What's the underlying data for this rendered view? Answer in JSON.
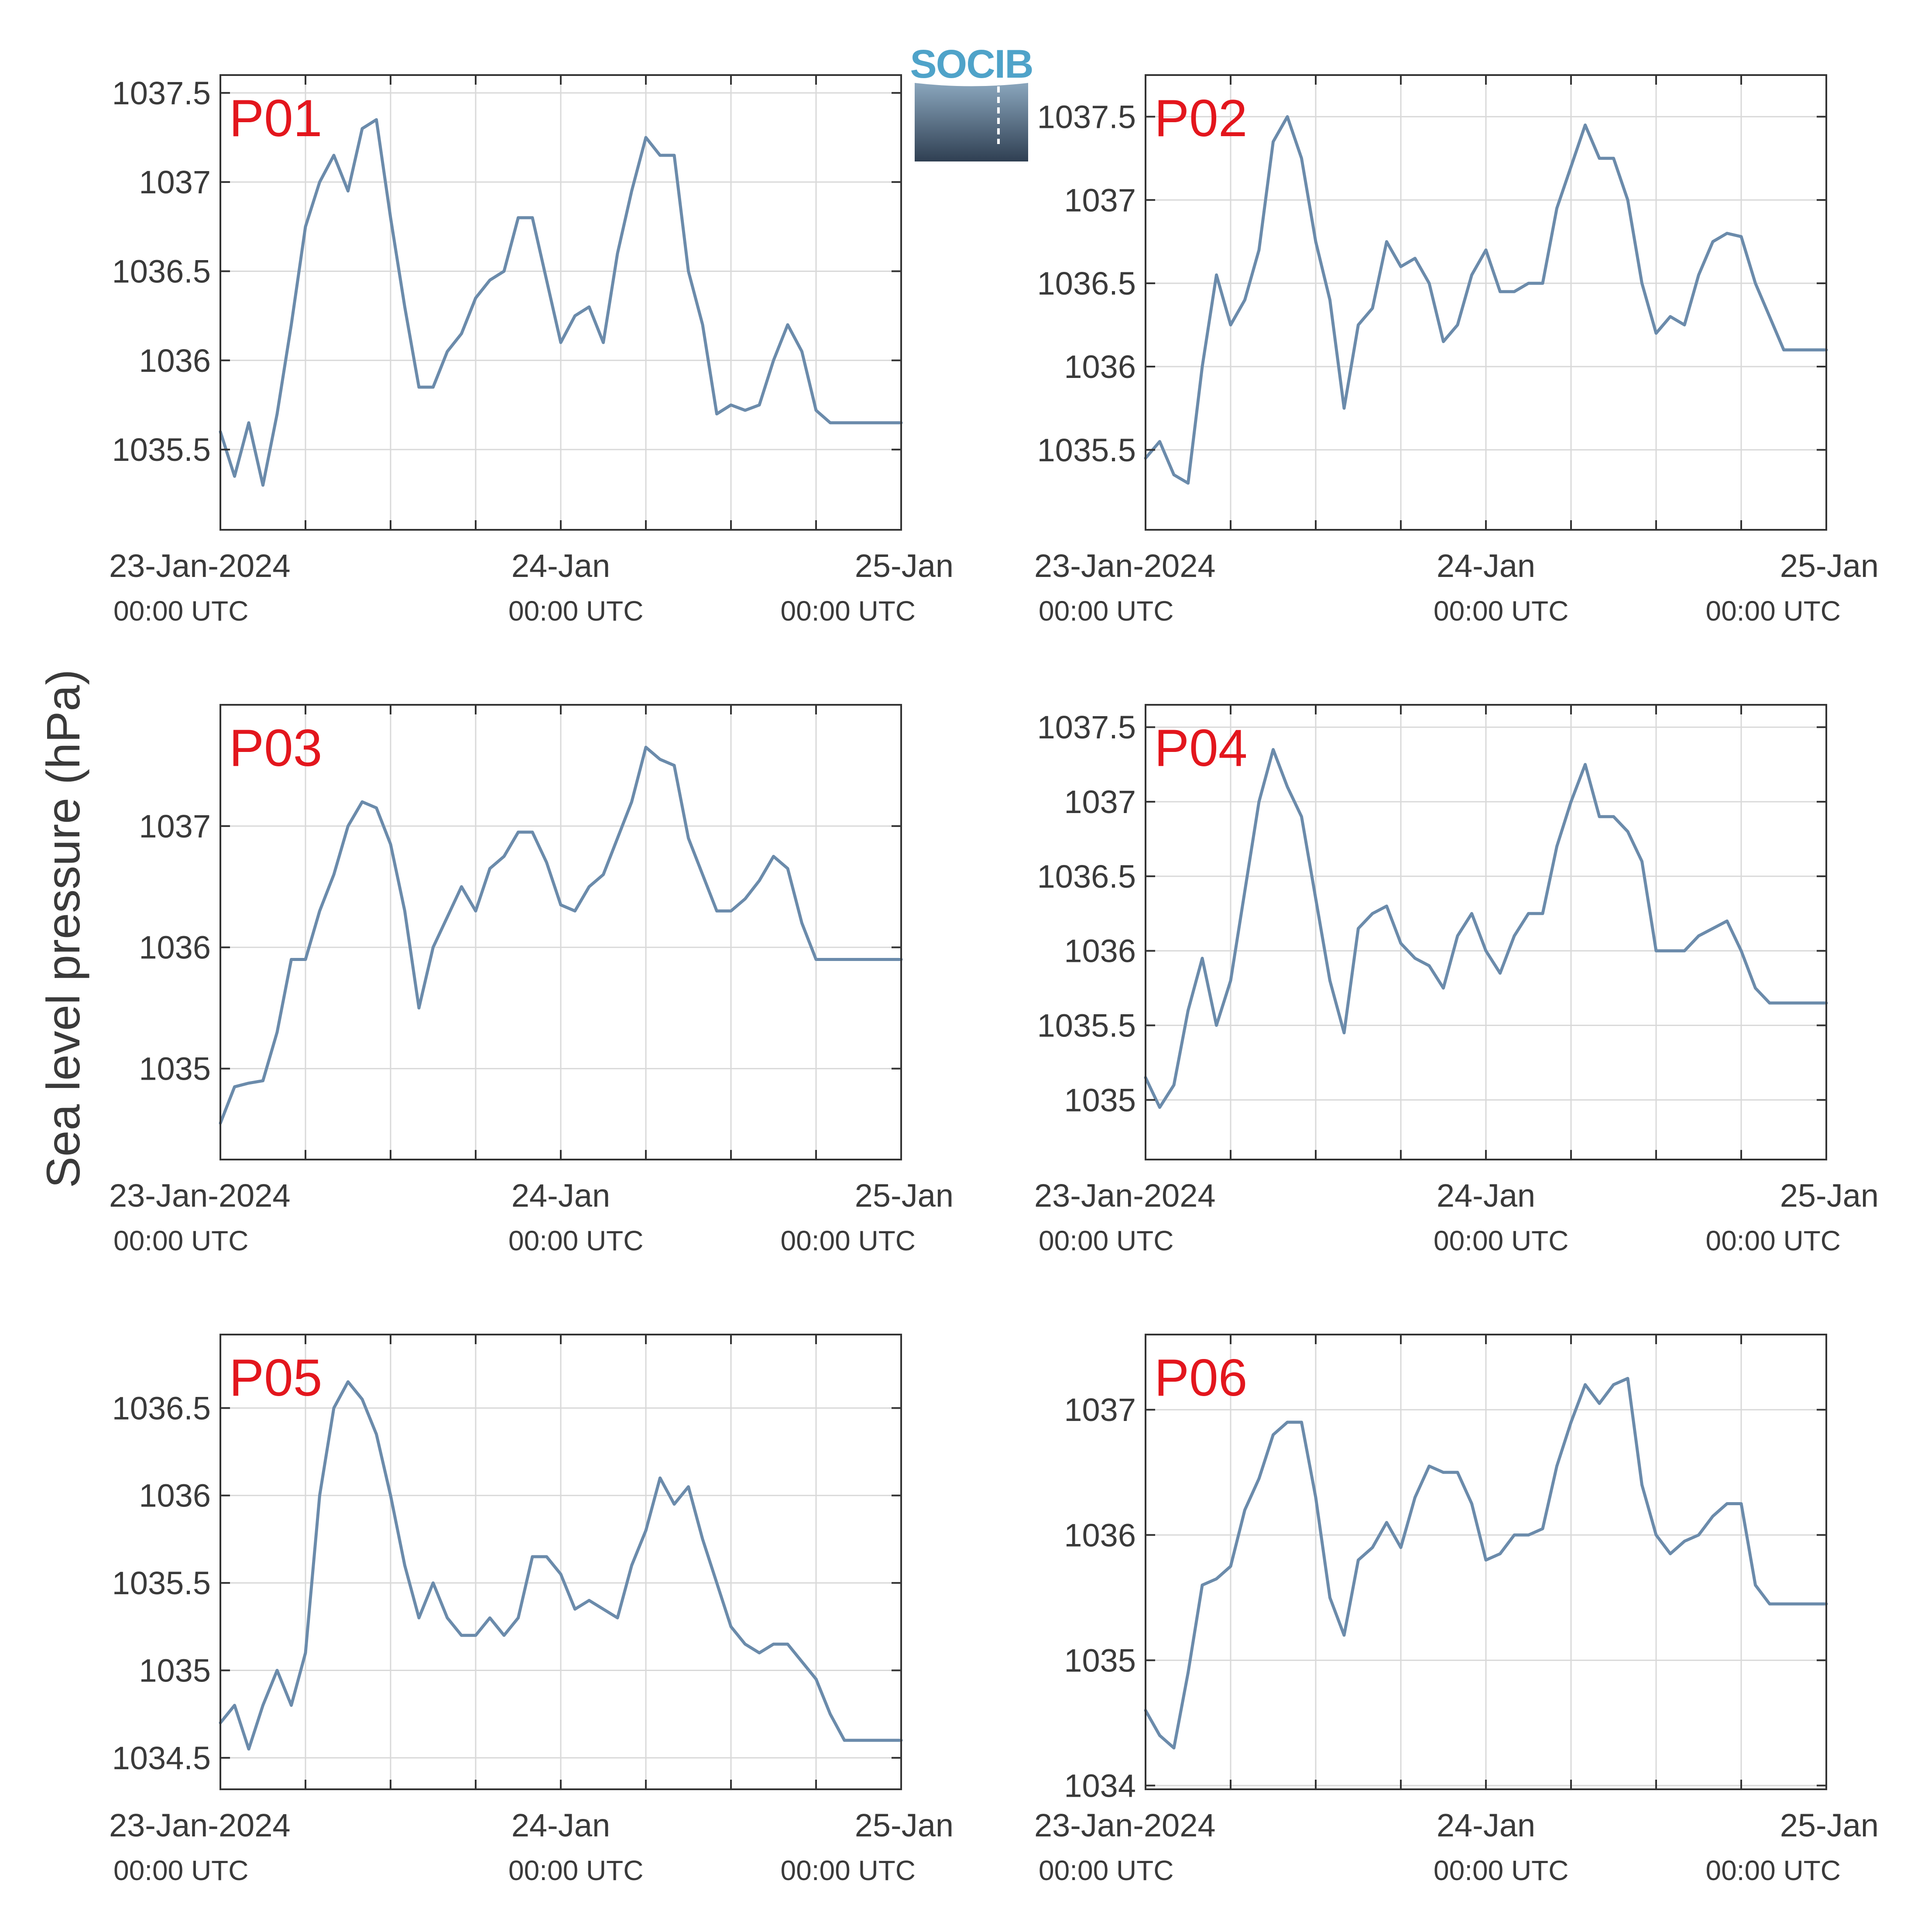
{
  "figure": {
    "ylabel": "Sea level pressure (hPa)",
    "logo_text": "SOCIB"
  },
  "colors": {
    "series": "#6b8bab",
    "panel_label": "#e3161d",
    "axis": "#333333",
    "grid": "#d9d9d9",
    "text": "#3a3a3a",
    "logo_top": "#4fa3c9",
    "logo_bottom": "#2f3f52"
  },
  "chart_data": [
    {
      "type": "line",
      "label": "P01",
      "x_range": [
        "23-Jan-2024 00:00 UTC",
        "25-Jan-2024 00:00 UTC"
      ],
      "x_ticks": [
        {
          "label": "23-Jan-2024",
          "sublabel": "00:00 UTC"
        },
        {
          "label": "24-Jan",
          "sublabel": "00:00 UTC"
        },
        {
          "label": "25-Jan",
          "sublabel": "00:00 UTC"
        }
      ],
      "ylim": [
        1035.05,
        1037.6
      ],
      "yticks": [
        1035.5,
        1036,
        1036.5,
        1037,
        1037.5
      ],
      "ytick_labels": [
        "1035.5",
        "1036",
        "1036.5",
        "1037",
        "1037.5"
      ],
      "grid": true,
      "x_hours": [
        0,
        1,
        2,
        3,
        4,
        5,
        6,
        7,
        8,
        9,
        10,
        11,
        12,
        13,
        14,
        15,
        16,
        17,
        18,
        19,
        20,
        21,
        22,
        23,
        24,
        25,
        26,
        27,
        28,
        29,
        30,
        31,
        32,
        33,
        34,
        35,
        36,
        37,
        38,
        39,
        40,
        41,
        42,
        43,
        44,
        45,
        46,
        47,
        48
      ],
      "values": [
        1035.6,
        1035.35,
        1035.65,
        1035.3,
        1035.7,
        1036.2,
        1036.75,
        1037.0,
        1037.15,
        1036.95,
        1037.3,
        1037.35,
        1036.8,
        1036.3,
        1035.85,
        1035.85,
        1036.05,
        1036.15,
        1036.35,
        1036.45,
        1036.5,
        1036.8,
        1036.8,
        1036.45,
        1036.1,
        1036.25,
        1036.3,
        1036.1,
        1036.6,
        1036.95,
        1037.25,
        1037.15,
        1037.15,
        1036.5,
        1036.2,
        1035.7,
        1035.75,
        1035.72,
        1035.75,
        1036.0,
        1036.2,
        1036.05,
        1035.72,
        1035.65,
        1035.65,
        1035.65,
        1035.65,
        1035.65,
        1035.65
      ]
    },
    {
      "type": "line",
      "label": "P02",
      "x_range": [
        "23-Jan-2024 00:00 UTC",
        "25-Jan-2024 00:00 UTC"
      ],
      "x_ticks": [
        {
          "label": "23-Jan-2024",
          "sublabel": "00:00 UTC"
        },
        {
          "label": "24-Jan",
          "sublabel": "00:00 UTC"
        },
        {
          "label": "25-Jan",
          "sublabel": "00:00 UTC"
        }
      ],
      "ylim": [
        1035.02,
        1037.75
      ],
      "yticks": [
        1035.5,
        1036,
        1036.5,
        1037,
        1037.5
      ],
      "ytick_labels": [
        "1035.5",
        "1036",
        "1036.5",
        "1037",
        "1037.5"
      ],
      "grid": true,
      "x_hours": [
        0,
        1,
        2,
        3,
        4,
        5,
        6,
        7,
        8,
        9,
        10,
        11,
        12,
        13,
        14,
        15,
        16,
        17,
        18,
        19,
        20,
        21,
        22,
        23,
        24,
        25,
        26,
        27,
        28,
        29,
        30,
        31,
        32,
        33,
        34,
        35,
        36,
        37,
        38,
        39,
        40,
        41,
        42,
        43,
        44,
        45,
        46,
        47,
        48
      ],
      "values": [
        1035.45,
        1035.55,
        1035.35,
        1035.3,
        1036.0,
        1036.55,
        1036.25,
        1036.4,
        1036.7,
        1037.35,
        1037.5,
        1037.25,
        1036.75,
        1036.4,
        1035.75,
        1036.25,
        1036.35,
        1036.75,
        1036.6,
        1036.65,
        1036.5,
        1036.15,
        1036.25,
        1036.55,
        1036.7,
        1036.45,
        1036.45,
        1036.5,
        1036.5,
        1036.95,
        1037.2,
        1037.45,
        1037.25,
        1037.25,
        1037.0,
        1036.5,
        1036.2,
        1036.3,
        1036.25,
        1036.55,
        1036.75,
        1036.8,
        1036.78,
        1036.5,
        1036.3,
        1036.1,
        1036.1,
        1036.1,
        1036.1
      ]
    },
    {
      "type": "line",
      "label": "P03",
      "x_range": [
        "23-Jan-2024 00:00 UTC",
        "25-Jan-2024 00:00 UTC"
      ],
      "x_ticks": [
        {
          "label": "23-Jan-2024",
          "sublabel": "00:00 UTC"
        },
        {
          "label": "24-Jan",
          "sublabel": "00:00 UTC"
        },
        {
          "label": "25-Jan",
          "sublabel": "00:00 UTC"
        }
      ],
      "ylim": [
        1034.25,
        1038.0
      ],
      "yticks": [
        1035,
        1036,
        1037
      ],
      "ytick_labels": [
        "1035",
        "1036",
        "1037"
      ],
      "grid": true,
      "x_hours": [
        0,
        1,
        2,
        3,
        4,
        5,
        6,
        7,
        8,
        9,
        10,
        11,
        12,
        13,
        14,
        15,
        16,
        17,
        18,
        19,
        20,
        21,
        22,
        23,
        24,
        25,
        26,
        27,
        28,
        29,
        30,
        31,
        32,
        33,
        34,
        35,
        36,
        37,
        38,
        39,
        40,
        41,
        42,
        43,
        44,
        45,
        46,
        47,
        48
      ],
      "values": [
        1034.55,
        1034.85,
        1034.88,
        1034.9,
        1035.3,
        1035.9,
        1035.9,
        1036.3,
        1036.6,
        1037.0,
        1037.2,
        1037.15,
        1036.85,
        1036.3,
        1035.5,
        1036.0,
        1036.25,
        1036.5,
        1036.3,
        1036.65,
        1036.75,
        1036.95,
        1036.95,
        1036.7,
        1036.35,
        1036.3,
        1036.5,
        1036.6,
        1036.9,
        1037.2,
        1037.65,
        1037.55,
        1037.5,
        1036.9,
        1036.6,
        1036.3,
        1036.3,
        1036.4,
        1036.55,
        1036.75,
        1036.65,
        1036.2,
        1035.9,
        1035.9,
        1035.9,
        1035.9,
        1035.9,
        1035.9,
        1035.9
      ]
    },
    {
      "type": "line",
      "label": "P04",
      "x_range": [
        "23-Jan-2024 00:00 UTC",
        "25-Jan-2024 00:00 UTC"
      ],
      "x_ticks": [
        {
          "label": "23-Jan-2024",
          "sublabel": "00:00 UTC"
        },
        {
          "label": "24-Jan",
          "sublabel": "00:00 UTC"
        },
        {
          "label": "25-Jan",
          "sublabel": "00:00 UTC"
        }
      ],
      "ylim": [
        1034.6,
        1037.65
      ],
      "yticks": [
        1035,
        1035.5,
        1036,
        1036.5,
        1037,
        1037.5
      ],
      "ytick_labels": [
        "1035",
        "1035.5",
        "1036",
        "1036.5",
        "1037",
        "1037.5"
      ],
      "grid": true,
      "x_hours": [
        0,
        1,
        2,
        3,
        4,
        5,
        6,
        7,
        8,
        9,
        10,
        11,
        12,
        13,
        14,
        15,
        16,
        17,
        18,
        19,
        20,
        21,
        22,
        23,
        24,
        25,
        26,
        27,
        28,
        29,
        30,
        31,
        32,
        33,
        34,
        35,
        36,
        37,
        38,
        39,
        40,
        41,
        42,
        43,
        44,
        45,
        46,
        47,
        48
      ],
      "values": [
        1035.15,
        1034.95,
        1035.1,
        1035.6,
        1035.95,
        1035.5,
        1035.8,
        1036.4,
        1037.0,
        1037.35,
        1037.1,
        1036.9,
        1036.35,
        1035.8,
        1035.45,
        1036.15,
        1036.25,
        1036.3,
        1036.05,
        1035.95,
        1035.9,
        1035.75,
        1036.1,
        1036.25,
        1036.0,
        1035.85,
        1036.1,
        1036.25,
        1036.25,
        1036.7,
        1037.0,
        1037.25,
        1036.9,
        1036.9,
        1036.8,
        1036.6,
        1036.0,
        1036.0,
        1036.0,
        1036.1,
        1036.15,
        1036.2,
        1036.0,
        1035.75,
        1035.65,
        1035.65,
        1035.65,
        1035.65,
        1035.65
      ]
    },
    {
      "type": "line",
      "label": "P05",
      "x_range": [
        "23-Jan-2024 00:00 UTC",
        "25-Jan-2024 00:00 UTC"
      ],
      "x_ticks": [
        {
          "label": "23-Jan-2024",
          "sublabel": "00:00 UTC"
        },
        {
          "label": "24-Jan",
          "sublabel": "00:00 UTC"
        },
        {
          "label": "25-Jan",
          "sublabel": "00:00 UTC"
        }
      ],
      "ylim": [
        1034.32,
        1036.92
      ],
      "yticks": [
        1034.5,
        1035,
        1035.5,
        1036,
        1036.5
      ],
      "ytick_labels": [
        "1034.5",
        "1035",
        "1035.5",
        "1036",
        "1036.5"
      ],
      "grid": true,
      "x_hours": [
        0,
        1,
        2,
        3,
        4,
        5,
        6,
        7,
        8,
        9,
        10,
        11,
        12,
        13,
        14,
        15,
        16,
        17,
        18,
        19,
        20,
        21,
        22,
        23,
        24,
        25,
        26,
        27,
        28,
        29,
        30,
        31,
        32,
        33,
        34,
        35,
        36,
        37,
        38,
        39,
        40,
        41,
        42,
        43,
        44,
        45,
        46,
        47,
        48
      ],
      "values": [
        1034.7,
        1034.8,
        1034.55,
        1034.8,
        1035.0,
        1034.8,
        1035.1,
        1036.0,
        1036.5,
        1036.65,
        1036.55,
        1036.35,
        1036.0,
        1035.6,
        1035.3,
        1035.5,
        1035.3,
        1035.2,
        1035.2,
        1035.3,
        1035.2,
        1035.3,
        1035.65,
        1035.65,
        1035.55,
        1035.35,
        1035.4,
        1035.35,
        1035.3,
        1035.6,
        1035.8,
        1036.1,
        1035.95,
        1036.05,
        1035.75,
        1035.5,
        1035.25,
        1035.15,
        1035.1,
        1035.15,
        1035.15,
        1035.05,
        1034.95,
        1034.75,
        1034.6,
        1034.6,
        1034.6,
        1034.6,
        1034.6
      ]
    },
    {
      "type": "line",
      "label": "P06",
      "x_range": [
        "23-Jan-2024 00:00 UTC",
        "25-Jan-2024 00:00 UTC"
      ],
      "x_ticks": [
        {
          "label": "23-Jan-2024",
          "sublabel": "00:00 UTC"
        },
        {
          "label": "24-Jan",
          "sublabel": "00:00 UTC"
        },
        {
          "label": "25-Jan",
          "sublabel": "00:00 UTC"
        }
      ],
      "ylim": [
        1033.97,
        1037.6
      ],
      "yticks": [
        1034,
        1035,
        1036,
        1037
      ],
      "ytick_labels": [
        "1034",
        "1035",
        "1036",
        "1037"
      ],
      "grid": true,
      "x_hours": [
        0,
        1,
        2,
        3,
        4,
        5,
        6,
        7,
        8,
        9,
        10,
        11,
        12,
        13,
        14,
        15,
        16,
        17,
        18,
        19,
        20,
        21,
        22,
        23,
        24,
        25,
        26,
        27,
        28,
        29,
        30,
        31,
        32,
        33,
        34,
        35,
        36,
        37,
        38,
        39,
        40,
        41,
        42,
        43,
        44,
        45,
        46,
        47,
        48
      ],
      "values": [
        1034.6,
        1034.4,
        1034.3,
        1034.9,
        1035.6,
        1035.65,
        1035.75,
        1036.2,
        1036.45,
        1036.8,
        1036.9,
        1036.9,
        1036.3,
        1035.5,
        1035.2,
        1035.8,
        1035.9,
        1036.1,
        1035.9,
        1036.3,
        1036.55,
        1036.5,
        1036.5,
        1036.25,
        1035.8,
        1035.85,
        1036.0,
        1036.0,
        1036.05,
        1036.55,
        1036.9,
        1037.2,
        1037.05,
        1037.2,
        1037.25,
        1036.4,
        1036.0,
        1035.85,
        1035.95,
        1036.0,
        1036.15,
        1036.25,
        1036.25,
        1035.6,
        1035.45,
        1035.45,
        1035.45,
        1035.45,
        1035.45
      ]
    }
  ]
}
